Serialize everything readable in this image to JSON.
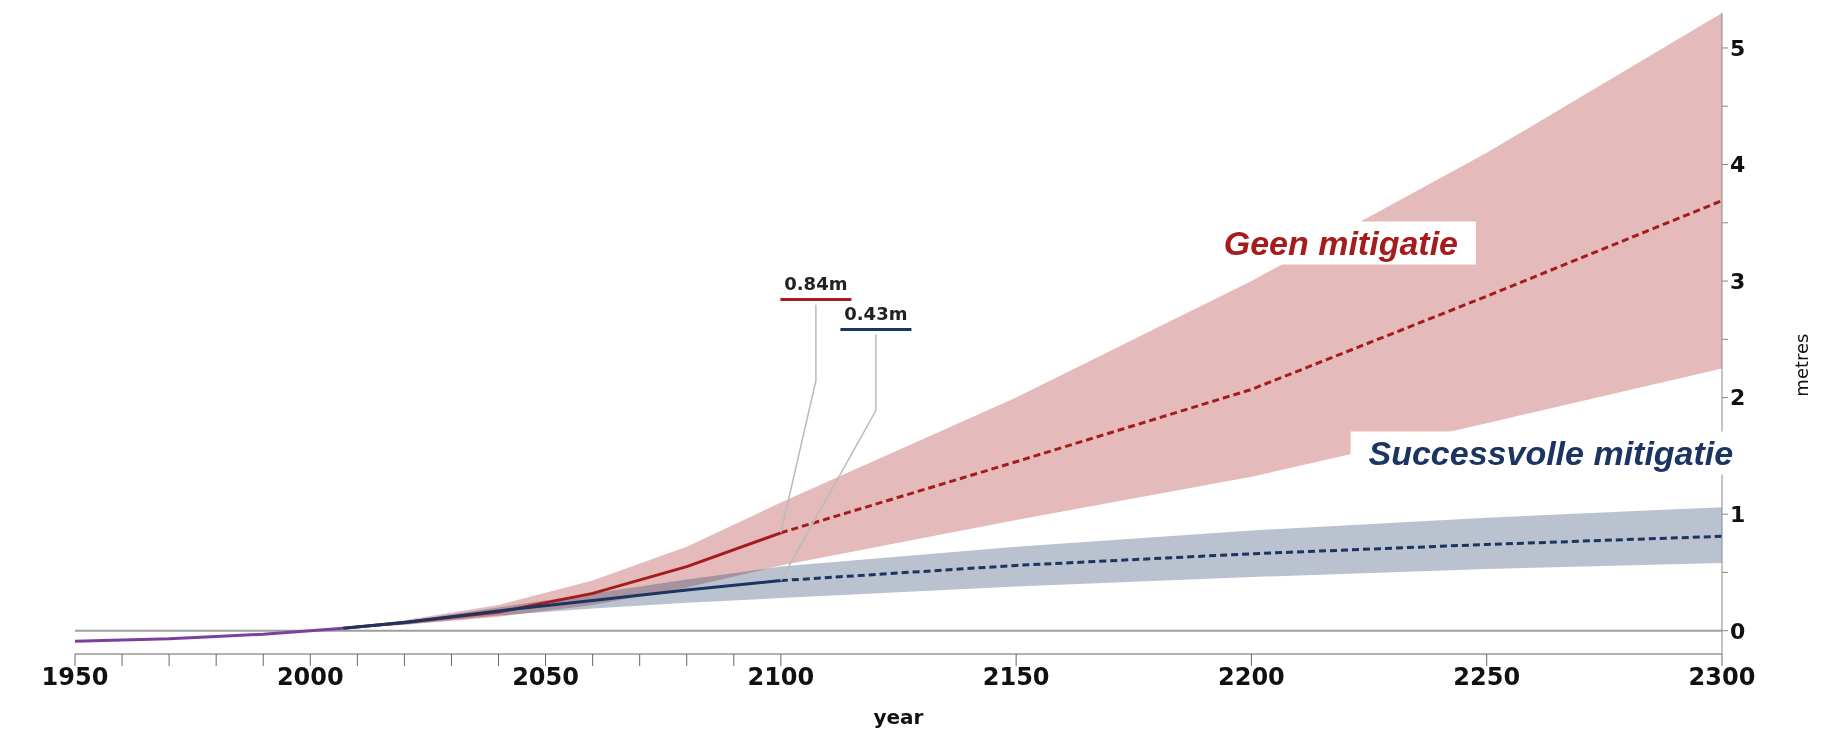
{
  "chart_data": {
    "type": "line",
    "xlabel": "year",
    "ylabel": "metres",
    "xlim": [
      1950,
      2300
    ],
    "ylim": [
      -0.2,
      5.3
    ],
    "xticks": [
      1950,
      {
        "value": 1960,
        "label": null
      },
      {
        "value": 1970,
        "label": null
      },
      {
        "value": 1980,
        "label": null
      },
      {
        "value": 1990,
        "label": null
      },
      2000,
      {
        "value": 2010,
        "label": null
      },
      {
        "value": 2020,
        "label": null
      },
      {
        "value": 2030,
        "label": null
      },
      {
        "value": 2040,
        "label": null
      },
      2050,
      {
        "value": 2060,
        "label": null
      },
      {
        "value": 2070,
        "label": null
      },
      {
        "value": 2080,
        "label": null
      },
      {
        "value": 2090,
        "label": null
      },
      2100,
      2150,
      2200,
      2250,
      2300
    ],
    "yticks": [
      0,
      {
        "value": 0.5,
        "label": null
      },
      1,
      {
        "value": 1.5,
        "label": null
      },
      2,
      {
        "value": 2.5,
        "label": null
      },
      3,
      {
        "value": 3.5,
        "label": null
      },
      4,
      {
        "value": 4.5,
        "label": null
      },
      5
    ],
    "grid": false,
    "legend": false,
    "marker": "none",
    "ref_lines": [
      {
        "axis": "y",
        "value": 0,
        "label": null,
        "color": "#9e9e9e"
      }
    ],
    "annotations": [
      {
        "text": "0.84m",
        "x": 2100,
        "y": 0.84
      },
      {
        "text": "0.43m",
        "x": 2100,
        "y": 0.43
      }
    ],
    "series": [
      {
        "color": "#7b3f9e",
        "line_style": "solid",
        "x": [
          1950,
          1960,
          1970,
          1980,
          1990,
          2000,
          2007
        ],
        "values": [
          -0.09,
          -0.08,
          -0.07,
          -0.05,
          -0.03,
          0,
          0.02
        ]
      },
      {
        "name": "Geen mitigatie",
        "color": "#a51c1c",
        "line_style": "solid",
        "x": [
          2007,
          2020,
          2040,
          2060,
          2080,
          2100
        ],
        "values": [
          0.02,
          0.07,
          0.16,
          0.32,
          0.55,
          0.84
        ],
        "lower": [
          0.02,
          0.05,
          0.12,
          0.22,
          0.37,
          0.56
        ],
        "upper": [
          0.02,
          0.09,
          0.22,
          0.43,
          0.72,
          1.1
        ]
      },
      {
        "color": "#a51c1c",
        "line_style": "dashed",
        "x": [
          2100,
          2150,
          2200,
          2250,
          2300
        ],
        "values": [
          0.84,
          1.45,
          2.07,
          2.87,
          3.69
        ],
        "lower": [
          0.56,
          0.95,
          1.32,
          1.78,
          2.25
        ],
        "upper": [
          1.1,
          2.0,
          3.0,
          4.1,
          5.3
        ]
      },
      {
        "name": "Successvolle mitigatie",
        "color": "#1b3560",
        "line_style": "solid",
        "x": [
          2007,
          2020,
          2040,
          2060,
          2080,
          2100
        ],
        "values": [
          0.02,
          0.07,
          0.17,
          0.26,
          0.35,
          0.43
        ],
        "lower": [
          0.02,
          0.05,
          0.13,
          0.19,
          0.24,
          0.28
        ],
        "upper": [
          0.02,
          0.08,
          0.2,
          0.32,
          0.44,
          0.55
        ]
      },
      {
        "color": "#1b3560",
        "line_style": "dashed",
        "x": [
          2100,
          2150,
          2200,
          2250,
          2300
        ],
        "values": [
          0.43,
          0.56,
          0.66,
          0.74,
          0.81
        ],
        "lower": [
          0.28,
          0.38,
          0.46,
          0.53,
          0.58
        ],
        "upper": [
          0.55,
          0.72,
          0.86,
          0.97,
          1.06
        ]
      }
    ]
  }
}
